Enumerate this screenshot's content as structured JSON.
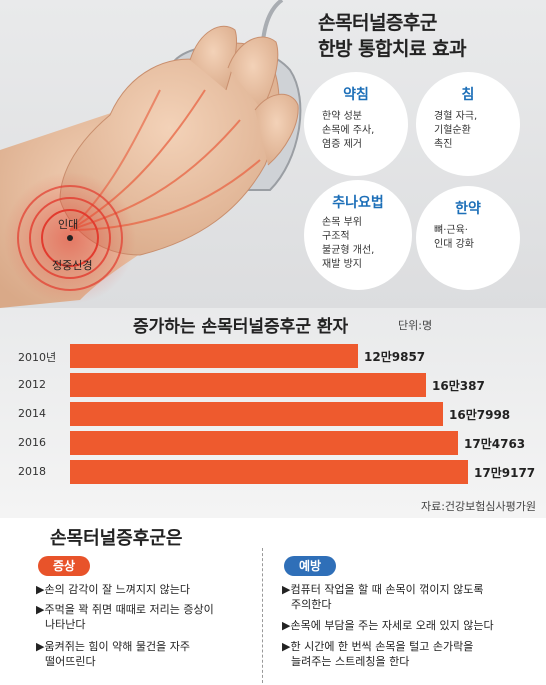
{
  "infographic_title_line1": "손목터널증후군",
  "infographic_title_line2": "한방 통합치료 효과",
  "hand_labels": {
    "ligament": "인대",
    "nerve": "정중신경"
  },
  "treatments": [
    {
      "title": "약침",
      "lines": [
        "한약 성분",
        "손목에 주사,",
        "염증 제거"
      ]
    },
    {
      "title": "침",
      "lines": [
        "경혈 자극,",
        "기혈순환",
        "촉진"
      ]
    },
    {
      "title": "추나요법",
      "lines": [
        "손목 부위",
        "구조적",
        "불균형 개선,",
        "재발 방지"
      ]
    },
    {
      "title": "한약",
      "lines": [
        "뼈·근육·",
        "인대 강화"
      ]
    }
  ],
  "colors": {
    "bar": "#ee5a2e",
    "symptom": "#e8532a",
    "prevention": "#2f6fb8",
    "accent_blue": "#1d6fb8"
  },
  "chart_data": {
    "type": "bar",
    "title": "증가하는 손목터널증후군 환자",
    "unit": "단위:명",
    "categories": [
      "2010년",
      "2012",
      "2014",
      "2016",
      "2018"
    ],
    "values": [
      129857,
      160387,
      167998,
      174763,
      179177
    ],
    "value_labels": [
      "12만9857",
      "16만387",
      "16만7998",
      "17만4763",
      "17만9177"
    ],
    "source": "자료:건강보험심사평가원"
  },
  "info": {
    "title": "손목터널증후군은",
    "symptom_tag": "증상",
    "prevention_tag": "예방",
    "symptoms": [
      [
        "▶손의 감각이 잘 느껴지지 않는다"
      ],
      [
        "▶주먹을 꽉 쥐면 때때로 저리는 증상이",
        "나타난다"
      ],
      [
        "▶움켜쥐는 힘이 약해 물건을 자주",
        "떨어뜨린다"
      ]
    ],
    "preventions": [
      [
        "▶컴퓨터 작업을 할 때 손목이 꺾이지 않도록",
        "주의한다"
      ],
      [
        "▶손목에 부담을 주는 자세로 오래 있지 않는다"
      ],
      [
        "▶한 시간에 한 번씩 손목을 털고 손가락을",
        "늘려주는 스트레칭을 한다"
      ]
    ]
  }
}
